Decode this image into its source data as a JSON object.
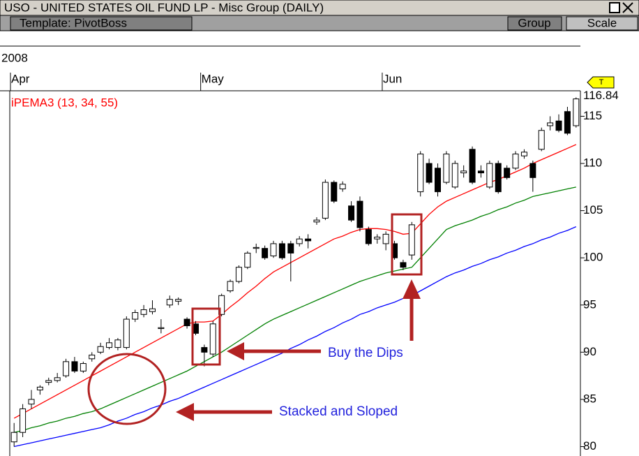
{
  "header": {
    "title": "USO - UNITED STATES OIL FUND LP - Misc Group (DAILY)",
    "template": "Template: PivotBoss",
    "buttons": [
      "Group",
      "Scale"
    ]
  },
  "chart_data": {
    "type": "candlestick",
    "year_label": "2008",
    "indicator_label": "iPEMA3 (13, 34, 55)",
    "marker_label": "T",
    "annotations": [
      "Buy the Dips",
      "Stacked and Sloped"
    ],
    "categories": [
      "Apr",
      null,
      null,
      null,
      null,
      null,
      null,
      null,
      null,
      null,
      null,
      null,
      null,
      null,
      null,
      null,
      null,
      null,
      null,
      null,
      null,
      null,
      "May",
      null,
      null,
      null,
      null,
      null,
      null,
      null,
      null,
      null,
      null,
      null,
      null,
      null,
      null,
      null,
      null,
      null,
      null,
      null,
      null,
      "Jun",
      null,
      null,
      null,
      null,
      null,
      null,
      null,
      null,
      null,
      null,
      null,
      null,
      null,
      null,
      null,
      null,
      null,
      null,
      null,
      null,
      null,
      null
    ],
    "open": [
      80.5,
      81.5,
      84.5,
      86,
      86.8,
      87,
      87.5,
      89,
      88,
      89.3,
      90,
      90.5,
      90.5,
      90.5,
      93.5,
      94,
      94.3,
      92.5,
      95,
      95.4,
      93.5,
      93,
      90.5,
      89.8,
      94,
      96.5,
      97.5,
      99,
      101,
      101,
      100.2,
      101.5,
      101.5,
      101.5,
      102,
      103.8,
      104.2,
      108,
      107.3,
      105.5,
      106,
      103,
      102,
      101.5,
      101.5,
      99.5,
      100.3,
      107,
      110,
      109.5,
      108,
      107.5,
      109,
      111.5,
      109.2,
      107.5,
      110,
      109.5,
      109.5,
      110.8,
      110,
      111.5,
      114,
      114.5,
      115.5,
      114
    ],
    "high": [
      82.5,
      84.5,
      86,
      86.5,
      87.3,
      87.8,
      89.3,
      89.5,
      89,
      90,
      91,
      91.5,
      91.5,
      93.8,
      94.5,
      95,
      95.5,
      93.5,
      96,
      95.8,
      93.7,
      93.3,
      90.8,
      93.3,
      96.2,
      97.7,
      99.2,
      100.7,
      101.5,
      101.3,
      101.8,
      101.8,
      101.8,
      102.3,
      102.5,
      104.3,
      108.3,
      108.2,
      108.1,
      106,
      106.5,
      103.3,
      102.5,
      102.8,
      101.8,
      99.8,
      103.8,
      111.3,
      110.5,
      110,
      111.3,
      110.3,
      109.8,
      111.8,
      109.8,
      110.3,
      110.3,
      109.8,
      111.3,
      111.5,
      110.3,
      113.8,
      115,
      115.2,
      116,
      117
    ],
    "low": [
      80,
      81,
      84,
      85.5,
      86.5,
      86.8,
      87.3,
      87.8,
      87.8,
      89,
      89.8,
      90.3,
      90.2,
      90.3,
      93.2,
      93.7,
      94,
      92,
      94.7,
      95,
      92.5,
      91.8,
      88.5,
      89.5,
      93.8,
      96.3,
      97.3,
      98.8,
      100.5,
      99.8,
      100,
      99.8,
      97.5,
      101.2,
      101,
      103.5,
      104,
      105.8,
      107,
      103.8,
      102.8,
      101.3,
      101.5,
      100.8,
      99.8,
      98.7,
      99.8,
      106.5,
      107.8,
      106.5,
      107.8,
      107.3,
      108.5,
      107.8,
      108.5,
      107.3,
      106.8,
      108.3,
      109.3,
      110.5,
      107,
      111.3,
      113.5,
      113.3,
      113,
      113.8
    ],
    "close": [
      81.5,
      84,
      85,
      86.3,
      87,
      87.3,
      89,
      88,
      88.8,
      89.7,
      90.6,
      91,
      91.3,
      93.5,
      94.2,
      94.5,
      94.6,
      92.6,
      95.6,
      95.6,
      92.8,
      92,
      90,
      93,
      96,
      97.5,
      99,
      100.5,
      101.1,
      100,
      101.5,
      100,
      100.5,
      102,
      101.8,
      104,
      108,
      106,
      107.8,
      104,
      103.2,
      101.5,
      102.2,
      102.5,
      100,
      99,
      103.5,
      111,
      108,
      107,
      111,
      110,
      109.2,
      108,
      109,
      110,
      107,
      108.5,
      111,
      111.2,
      108.5,
      113.5,
      114.3,
      113.5,
      113.2,
      116.84
    ],
    "series": [
      {
        "color": "#ff0000",
        "values": [
          83,
          83.5,
          84,
          84.5,
          85,
          85.5,
          86,
          86.5,
          87,
          87.5,
          88,
          88.5,
          89,
          89.5,
          90,
          90.5,
          91,
          91.5,
          92,
          92.5,
          93,
          93.2,
          93.2,
          93.3,
          94,
          94.8,
          95.5,
          96.3,
          97,
          97.8,
          98.5,
          99,
          99.5,
          100,
          100.5,
          101,
          101.5,
          102,
          102.3,
          102.7,
          103,
          103.1,
          103.1,
          103,
          102.8,
          102.5,
          102.6,
          103.6,
          104.6,
          105.4,
          106,
          106.4,
          106.8,
          107.2,
          107.6,
          108,
          108.3,
          108.7,
          109.1,
          109.5,
          110,
          110.4,
          110.8,
          111.2,
          111.6,
          112
        ]
      },
      {
        "color": "#008000",
        "values": [
          81.5,
          81.7,
          82,
          82.2,
          82.5,
          82.7,
          83,
          83.2,
          83.5,
          83.7,
          84,
          84.4,
          84.8,
          85.2,
          85.6,
          86,
          86.4,
          86.8,
          87.2,
          87.6,
          88,
          88.5,
          89,
          89.5,
          90,
          90.6,
          91.2,
          91.8,
          92.4,
          93,
          93.5,
          93.9,
          94.3,
          94.7,
          95.1,
          95.5,
          95.9,
          96.3,
          96.7,
          97.1,
          97.5,
          97.8,
          98.1,
          98.4,
          98.6,
          98.8,
          99,
          100,
          101,
          102,
          103,
          103.4,
          103.7,
          104,
          104.4,
          104.7,
          105.1,
          105.4,
          105.8,
          106.1,
          106.5,
          106.7,
          106.9,
          107.1,
          107.3,
          107.5
        ]
      },
      {
        "color": "#0000ff",
        "values": [
          80,
          80.2,
          80.4,
          80.6,
          80.8,
          81,
          81.2,
          81.4,
          81.6,
          81.8,
          82,
          82.3,
          82.7,
          83,
          83.4,
          83.7,
          84.1,
          84.4,
          84.8,
          85.1,
          85.5,
          85.9,
          86.3,
          86.7,
          87.1,
          87.5,
          87.9,
          88.3,
          88.7,
          89.1,
          89.5,
          89.9,
          90.4,
          90.8,
          91.3,
          91.7,
          92.2,
          92.6,
          93.1,
          93.5,
          94,
          94.3,
          94.7,
          95,
          95.3,
          95.7,
          96,
          96.5,
          97,
          97.5,
          98,
          98.4,
          98.7,
          99.1,
          99.4,
          99.8,
          100.1,
          100.5,
          100.8,
          101.2,
          101.5,
          101.9,
          102.2,
          102.6,
          102.9,
          103.3
        ]
      }
    ],
    "ylim": [
      79,
      117.7
    ],
    "yticks": [
      80,
      85,
      90,
      95,
      100,
      105,
      110,
      115
    ]
  }
}
